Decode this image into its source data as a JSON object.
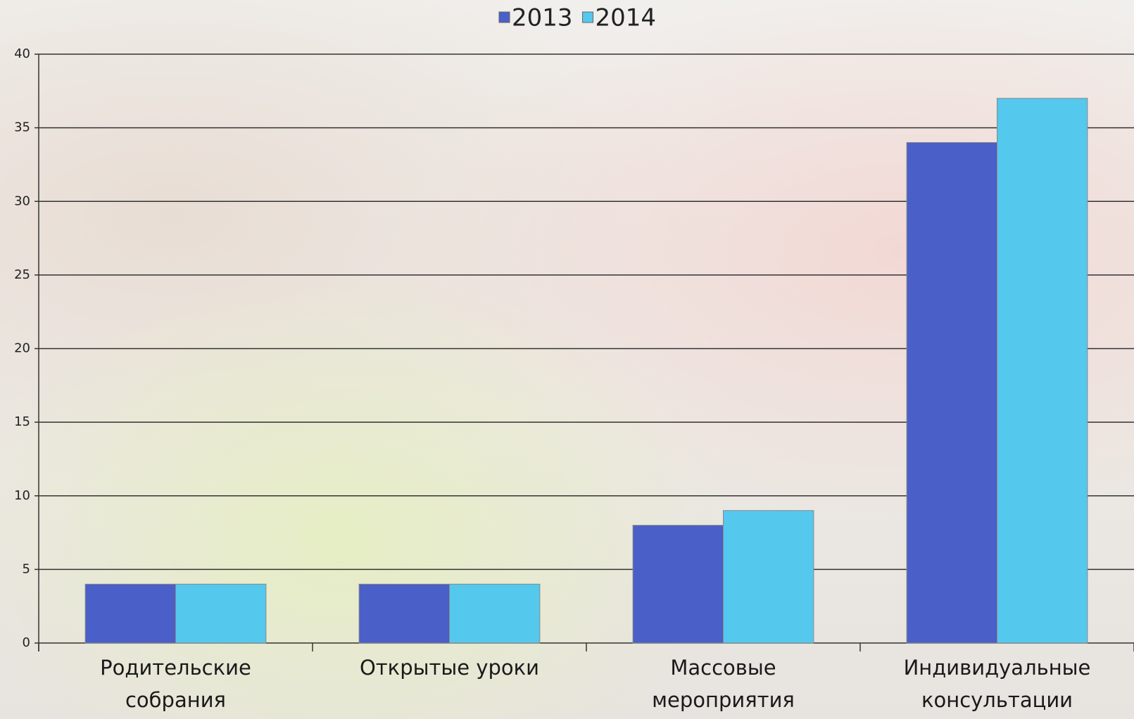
{
  "chart_data": {
    "type": "bar",
    "categories": [
      "Родительские собрания",
      "Открытые уроки",
      "Массовые мероприятия",
      "Индивидуальные консультации"
    ],
    "series": [
      {
        "name": "2013",
        "color": "#4a5fc8",
        "values": [
          4,
          4,
          8,
          34
        ]
      },
      {
        "name": "2014",
        "color": "#55c8ee",
        "values": [
          4,
          4,
          9,
          37
        ]
      }
    ],
    "ylim": [
      0,
      40
    ],
    "yticks": [
      0,
      5,
      10,
      15,
      20,
      25,
      30,
      35,
      40
    ],
    "grid": true,
    "legend": "top"
  }
}
